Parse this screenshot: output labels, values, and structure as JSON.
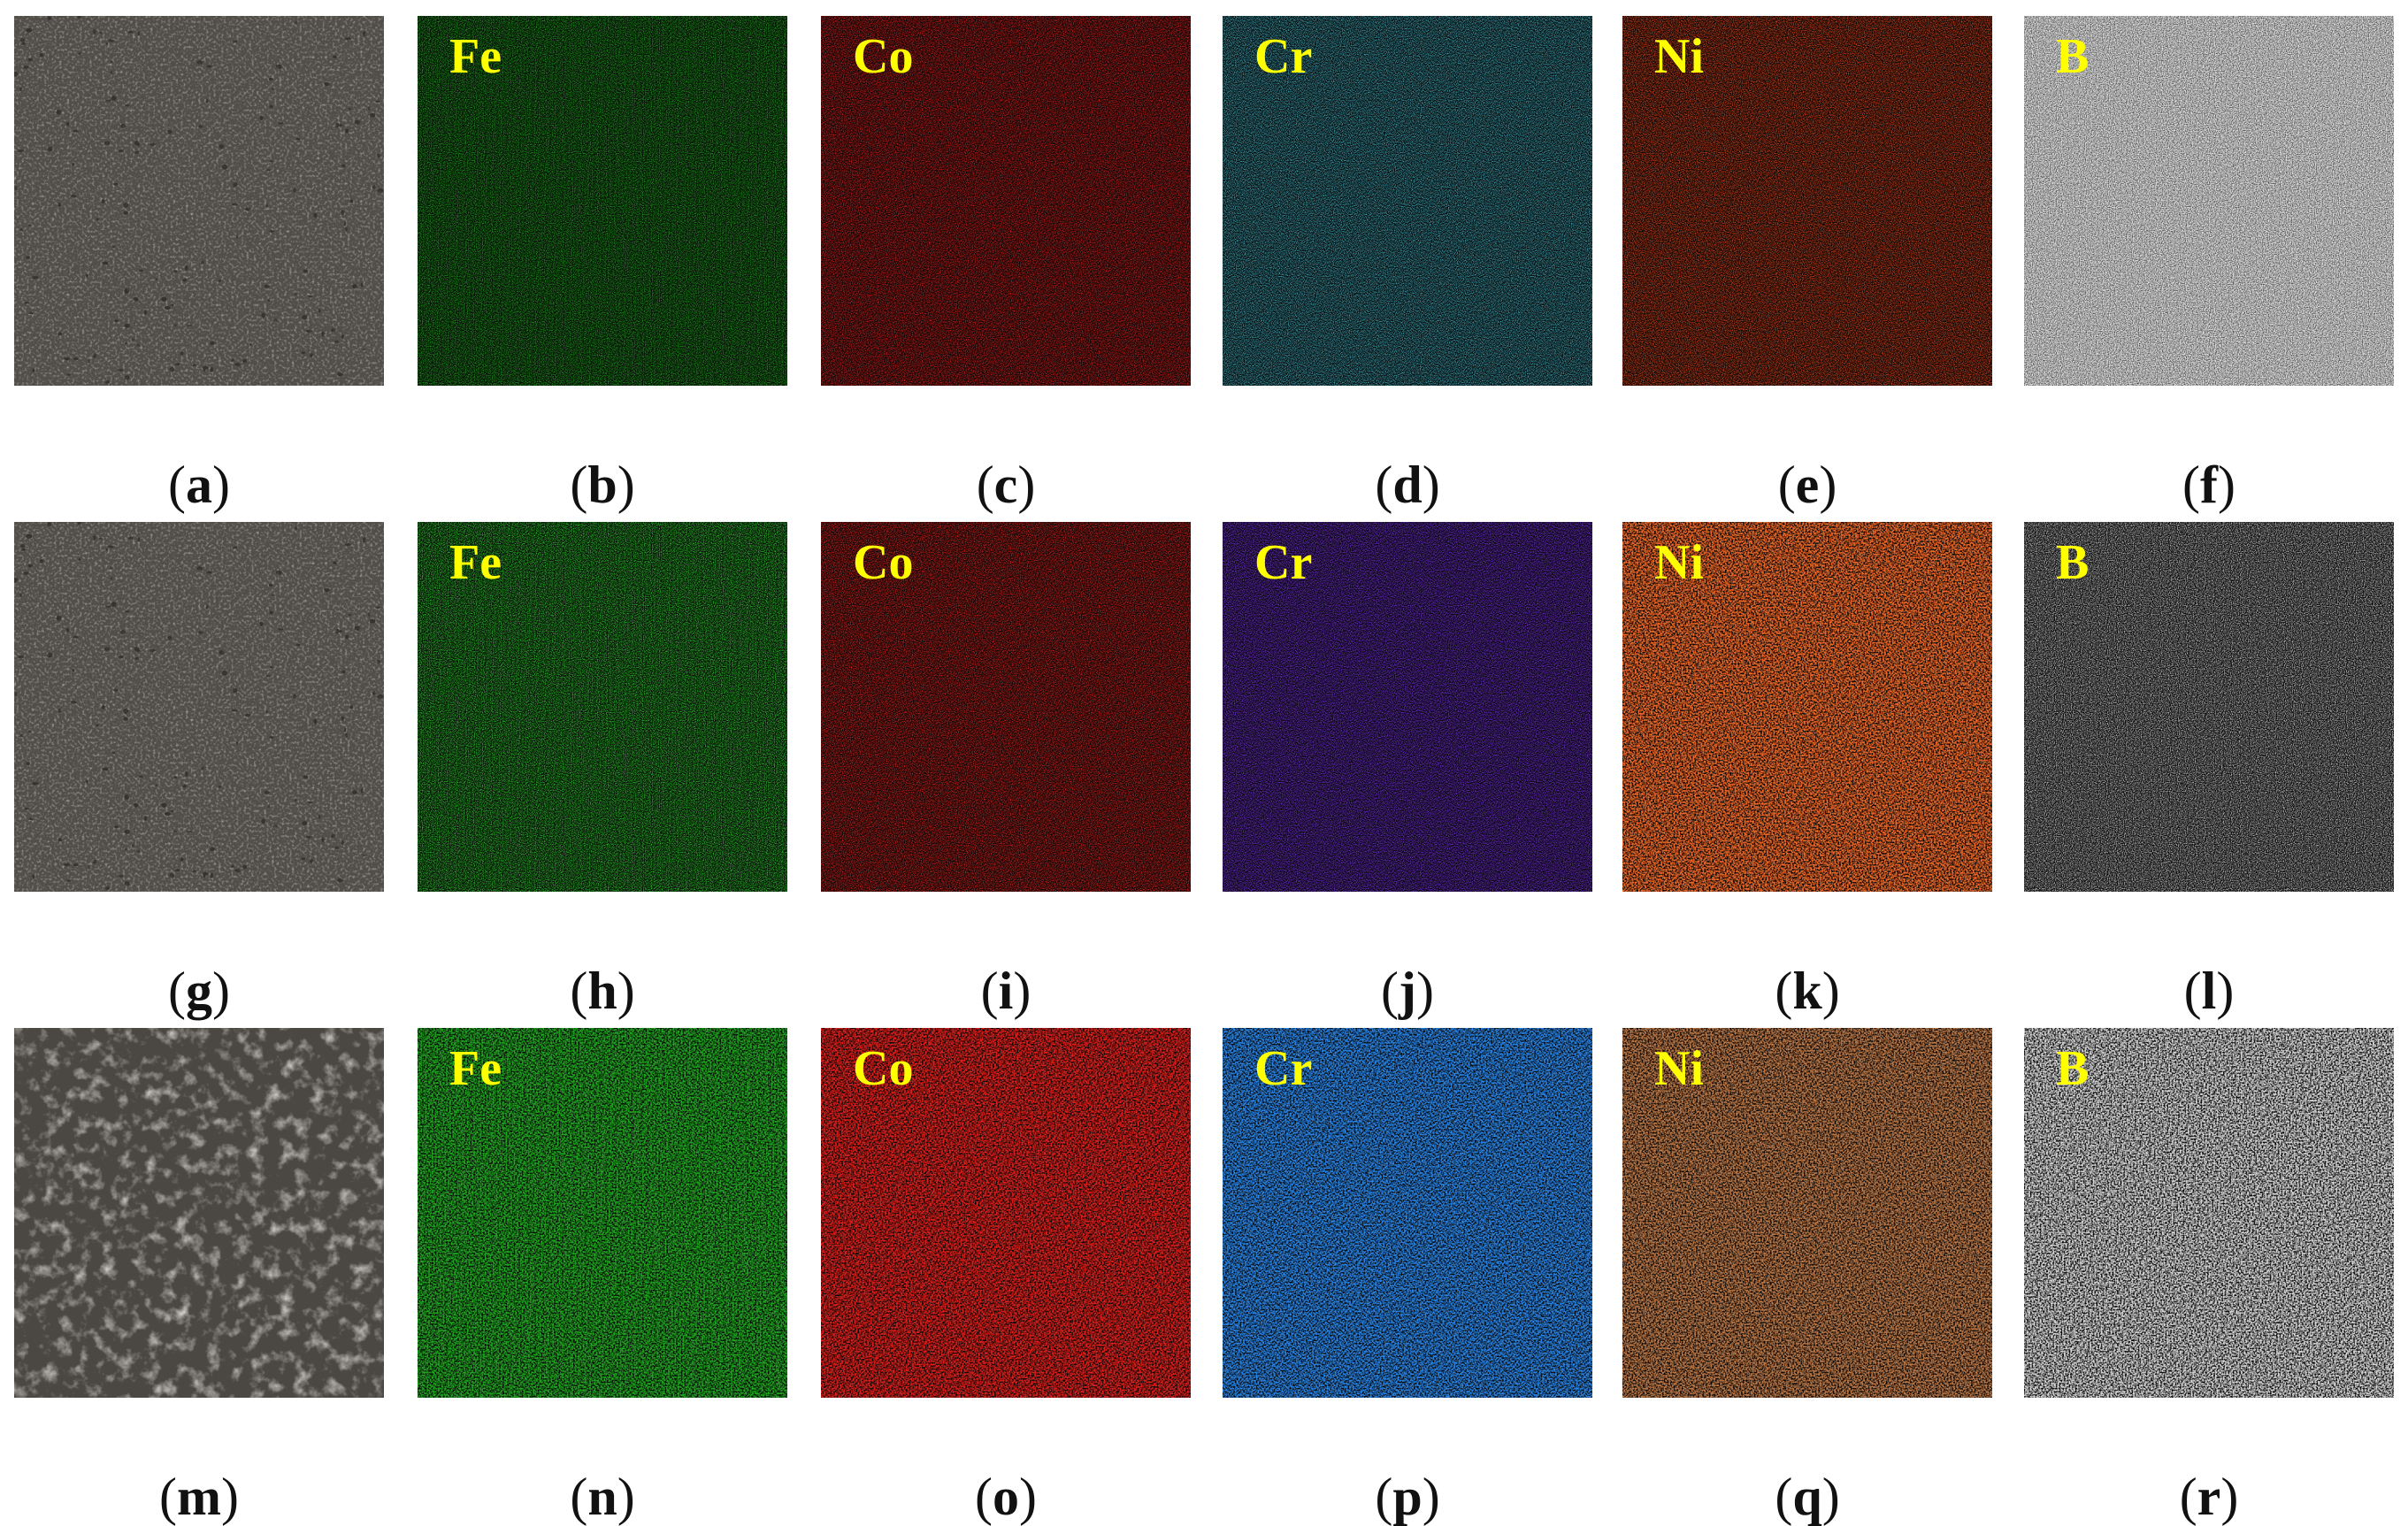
{
  "rows": [
    {
      "panels": [
        {
          "caption": "a",
          "element": "",
          "kind": "sem",
          "color": "#b3aca2"
        },
        {
          "caption": "b",
          "element": "Fe",
          "kind": "map",
          "color": "#1fa61f"
        },
        {
          "caption": "c",
          "element": "Co",
          "kind": "map",
          "color": "#d9201e"
        },
        {
          "caption": "d",
          "element": "Cr",
          "kind": "map",
          "color": "#43b4c6"
        },
        {
          "caption": "e",
          "element": "Ni",
          "kind": "map",
          "color": "#e3461c"
        },
        {
          "caption": "f",
          "element": "B",
          "kind": "map-light",
          "color": "#e6e6e6"
        }
      ]
    },
    {
      "panels": [
        {
          "caption": "g",
          "element": "",
          "kind": "sem",
          "color": "#b5aea4"
        },
        {
          "caption": "h",
          "element": "Fe",
          "kind": "map",
          "color": "#2fcf2f"
        },
        {
          "caption": "i",
          "element": "Co",
          "kind": "map",
          "color": "#e02420"
        },
        {
          "caption": "j",
          "element": "Cr",
          "kind": "map",
          "color": "#7a32e6"
        },
        {
          "caption": "k",
          "element": "Ni",
          "kind": "map-dense",
          "color": "#f06a2a"
        },
        {
          "caption": "l",
          "element": "B",
          "kind": "map",
          "color": "#cfcfcf"
        }
      ]
    },
    {
      "panels": [
        {
          "caption": "m",
          "element": "",
          "kind": "sem-rough",
          "color": "#a7a096"
        },
        {
          "caption": "n",
          "element": "Fe",
          "kind": "map-dense",
          "color": "#22a822"
        },
        {
          "caption": "o",
          "element": "Co",
          "kind": "map-dense",
          "color": "#e0201c"
        },
        {
          "caption": "p",
          "element": "Cr",
          "kind": "map-dense",
          "color": "#2a86e8"
        },
        {
          "caption": "q",
          "element": "Ni",
          "kind": "map-dense",
          "color": "#c07a48"
        },
        {
          "caption": "r",
          "element": "B",
          "kind": "map-dense",
          "color": "#d8d8d8"
        }
      ]
    }
  ]
}
